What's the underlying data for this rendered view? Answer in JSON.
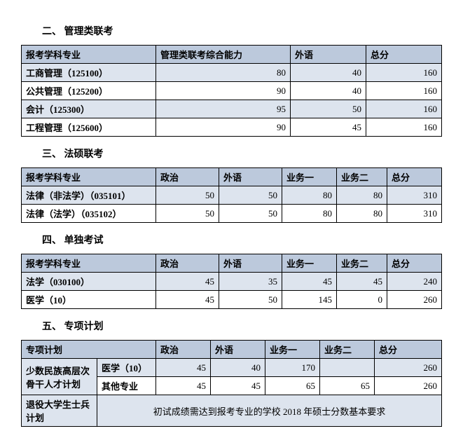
{
  "section2": {
    "title": "二、  管理类联考",
    "headers": [
      "报考学科专业",
      "管理类联考综合能力",
      "外语",
      "总分"
    ],
    "rows": [
      {
        "label": "工商管理（125100）",
        "v": [
          80,
          40,
          160
        ],
        "alt": true
      },
      {
        "label": "公共管理（125200）",
        "v": [
          90,
          40,
          160
        ],
        "alt": false
      },
      {
        "label": "会计（125300）",
        "v": [
          95,
          50,
          160
        ],
        "alt": true
      },
      {
        "label": "工程管理（125600）",
        "v": [
          90,
          45,
          160
        ],
        "alt": false
      }
    ],
    "col_widths": [
      "32%",
      "32%",
      "18%",
      "18%"
    ]
  },
  "section3": {
    "title": "三、  法硕联考",
    "headers": [
      "报考学科专业",
      "政治",
      "外语",
      "业务一",
      "业务二",
      "总分"
    ],
    "rows": [
      {
        "label": "法律（非法学）（035101）",
        "v": [
          50,
          50,
          80,
          80,
          310
        ],
        "alt": true
      },
      {
        "label": "法律（法学）（035102）",
        "v": [
          50,
          50,
          80,
          80,
          310
        ],
        "alt": false
      }
    ],
    "col_widths": [
      "32%",
      "15%",
      "15%",
      "13%",
      "12%",
      "13%"
    ]
  },
  "section4": {
    "title": "四、  单独考试",
    "headers": [
      "报考学科专业",
      "政治",
      "外语",
      "业务一",
      "业务二",
      "总分"
    ],
    "rows": [
      {
        "label": "法学（030100）",
        "v": [
          45,
          35,
          45,
          45,
          240
        ],
        "alt": true
      },
      {
        "label": "医学（10）",
        "v": [
          45,
          50,
          145,
          0,
          260
        ],
        "alt": false
      }
    ],
    "col_widths": [
      "32%",
      "15%",
      "15%",
      "13%",
      "12%",
      "13%"
    ]
  },
  "section5": {
    "title": "五、  专项计划",
    "headers": [
      "专项计划",
      "",
      "政治",
      "外语",
      "业务一",
      "业务二",
      "总分"
    ],
    "merged_label": "少数民族高层次骨干人才计划",
    "rows": [
      {
        "sub": "医学（10）",
        "v": [
          45,
          40,
          170,
          "",
          260
        ],
        "alt": true
      },
      {
        "sub": "其他专业",
        "v": [
          45,
          45,
          65,
          65,
          260
        ],
        "alt": false
      }
    ],
    "note_label": "退役大学生士兵计划",
    "note_text": "初试成绩需达到报考专业的学校 2018 年硕士分数基本要求",
    "col_widths": [
      "18%",
      "14%",
      "13%",
      "13%",
      "13%",
      "13%",
      "16%"
    ]
  }
}
